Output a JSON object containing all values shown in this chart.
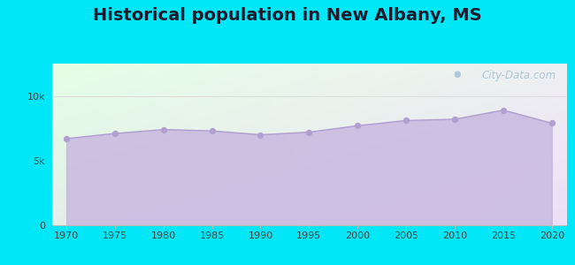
{
  "title": "Historical population in New Albany, MS",
  "title_fontsize": 14,
  "background_color": "#00e8f8",
  "fill_color": "#c8b8e0",
  "fill_alpha": 0.85,
  "line_color": "#b0a0d0",
  "marker_color": "#b0a0d0",
  "marker_size": 18,
  "years": [
    1970,
    1975,
    1980,
    1985,
    1990,
    1995,
    2000,
    2005,
    2010,
    2015,
    2020
  ],
  "population": [
    6700,
    7100,
    7400,
    7300,
    7000,
    7200,
    7700,
    8100,
    8200,
    8900,
    7900
  ],
  "yticks": [
    0,
    5000,
    10000
  ],
  "ytick_labels": [
    "0",
    "5k",
    "10k"
  ],
  "ylim": [
    0,
    12500
  ],
  "xlim": [
    1968.5,
    2021.5
  ],
  "watermark": "City-Data.com",
  "grid_color": "#dddddd",
  "spine_color": "#bbbbbb"
}
